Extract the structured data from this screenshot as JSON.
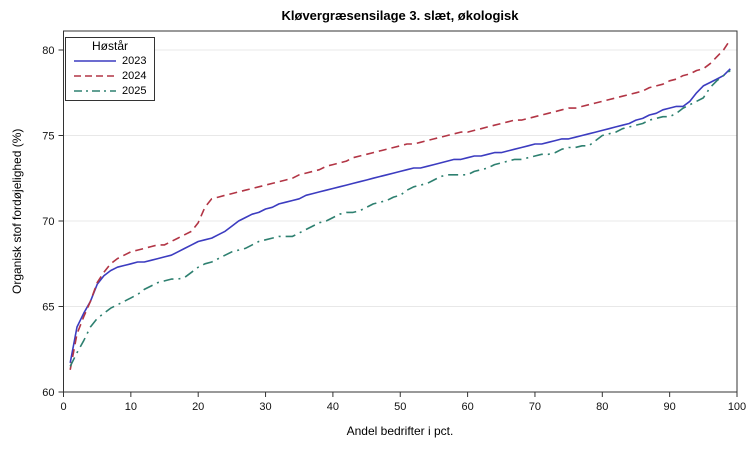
{
  "title": "Kløvergræsensilage 3. slæt, økologisk",
  "axes": {
    "x_label": "Andel bedrifter i pct.",
    "y_label": "Organisk stof fordøjelighed (%)",
    "x_ticks": [
      0,
      10,
      20,
      30,
      40,
      50,
      60,
      70,
      80,
      90,
      100
    ],
    "y_ticks": [
      60,
      65,
      70,
      75,
      80
    ]
  },
  "legend": {
    "title": "Høstår"
  },
  "colors": {
    "frame": "#333333",
    "grid": "#e8e8e8",
    "tick": "#333333",
    "text": "#000000",
    "series_2023": "#3c3cc0",
    "series_2024": "#b23545",
    "series_2025": "#2e8070"
  },
  "chart_data": {
    "type": "line",
    "title": "Kløvergræsensilage 3. slæt, økologisk",
    "xlabel": "Andel bedrifter i pct.",
    "ylabel": "Organisk stof fordøjelighed (%)",
    "xlim": [
      0,
      100
    ],
    "ylim": [
      60,
      81
    ],
    "grid": "horizontal-only",
    "legend_title": "Høstår",
    "legend_position": "inside top-left",
    "x_start": 1,
    "x_step": 1,
    "series": [
      {
        "name": "2023",
        "color": "#3c3cc0",
        "dash": "solid",
        "values": [
          61.7,
          63.8,
          64.6,
          65.3,
          66.3,
          66.8,
          67.1,
          67.3,
          67.4,
          67.5,
          67.6,
          67.6,
          67.7,
          67.8,
          67.9,
          68.0,
          68.2,
          68.4,
          68.6,
          68.8,
          68.9,
          69.0,
          69.2,
          69.4,
          69.7,
          70.0,
          70.2,
          70.4,
          70.5,
          70.7,
          70.8,
          71.0,
          71.1,
          71.2,
          71.3,
          71.5,
          71.6,
          71.7,
          71.8,
          71.9,
          72.0,
          72.1,
          72.2,
          72.3,
          72.4,
          72.5,
          72.6,
          72.7,
          72.8,
          72.9,
          73.0,
          73.1,
          73.1,
          73.2,
          73.3,
          73.4,
          73.5,
          73.6,
          73.6,
          73.7,
          73.8,
          73.8,
          73.9,
          74.0,
          74.0,
          74.1,
          74.2,
          74.3,
          74.4,
          74.5,
          74.5,
          74.6,
          74.7,
          74.8,
          74.8,
          74.9,
          75.0,
          75.1,
          75.2,
          75.3,
          75.4,
          75.5,
          75.6,
          75.7,
          75.9,
          76.0,
          76.2,
          76.3,
          76.5,
          76.6,
          76.7,
          76.7,
          77.0,
          77.5,
          77.9,
          78.1,
          78.3,
          78.5,
          78.9
        ]
      },
      {
        "name": "2024",
        "color": "#b23545",
        "dash": "dashed",
        "values": [
          61.3,
          63.4,
          64.4,
          65.3,
          66.4,
          67.0,
          67.5,
          67.8,
          68.0,
          68.2,
          68.3,
          68.4,
          68.5,
          68.6,
          68.6,
          68.8,
          69.0,
          69.2,
          69.4,
          69.9,
          70.8,
          71.3,
          71.4,
          71.5,
          71.6,
          71.7,
          71.8,
          71.9,
          72.0,
          72.1,
          72.2,
          72.3,
          72.4,
          72.5,
          72.7,
          72.8,
          72.9,
          73.0,
          73.2,
          73.3,
          73.4,
          73.5,
          73.7,
          73.8,
          73.9,
          74.0,
          74.1,
          74.2,
          74.3,
          74.4,
          74.5,
          74.5,
          74.6,
          74.7,
          74.8,
          74.9,
          75.0,
          75.1,
          75.2,
          75.2,
          75.3,
          75.4,
          75.5,
          75.6,
          75.7,
          75.8,
          75.9,
          75.9,
          76.0,
          76.1,
          76.2,
          76.3,
          76.4,
          76.5,
          76.6,
          76.6,
          76.7,
          76.8,
          76.9,
          77.0,
          77.1,
          77.2,
          77.3,
          77.4,
          77.5,
          77.6,
          77.8,
          77.9,
          78.0,
          78.2,
          78.3,
          78.5,
          78.6,
          78.8,
          78.9,
          79.2,
          79.6,
          80.0,
          80.6
        ]
      },
      {
        "name": "2025",
        "color": "#2e8070",
        "dash": "dash-dot",
        "values": [
          61.5,
          62.3,
          63.0,
          63.8,
          64.3,
          64.6,
          64.9,
          65.1,
          65.3,
          65.5,
          65.7,
          66.0,
          66.2,
          66.4,
          66.5,
          66.6,
          66.6,
          66.7,
          67.0,
          67.3,
          67.5,
          67.6,
          67.8,
          68.0,
          68.2,
          68.3,
          68.4,
          68.6,
          68.8,
          68.9,
          69.0,
          69.1,
          69.1,
          69.1,
          69.3,
          69.5,
          69.7,
          69.9,
          70.0,
          70.2,
          70.4,
          70.5,
          70.5,
          70.6,
          70.8,
          71.0,
          71.1,
          71.2,
          71.4,
          71.5,
          71.8,
          72.0,
          72.1,
          72.2,
          72.4,
          72.6,
          72.7,
          72.7,
          72.7,
          72.7,
          72.9,
          73.0,
          73.1,
          73.3,
          73.4,
          73.5,
          73.6,
          73.6,
          73.7,
          73.8,
          73.9,
          73.9,
          74.0,
          74.2,
          74.3,
          74.3,
          74.4,
          74.4,
          74.7,
          75.0,
          75.1,
          75.2,
          75.4,
          75.5,
          75.6,
          75.7,
          75.9,
          76.0,
          76.1,
          76.1,
          76.3,
          76.6,
          76.8,
          77.0,
          77.2,
          77.8,
          78.2,
          78.5,
          78.8
        ]
      }
    ]
  }
}
